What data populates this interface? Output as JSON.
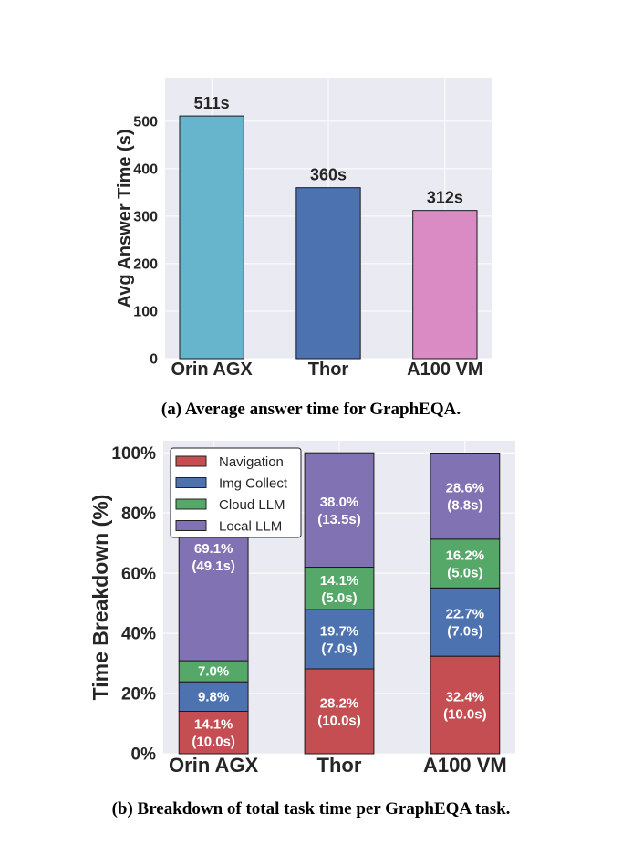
{
  "chart_data": [
    {
      "type": "bar",
      "categories": [
        "Orin AGX",
        "Thor",
        "A100 VM"
      ],
      "values": [
        511,
        360,
        312
      ],
      "data_labels": [
        "511s",
        "360s",
        "312s"
      ],
      "colors": [
        "#67b4cd",
        "#4c72b0",
        "#da8bc3"
      ],
      "xlabel": "",
      "ylabel": "Avg Answer Time (s)",
      "ylim": [
        0,
        590
      ],
      "yticks": [
        0,
        100,
        200,
        300,
        400,
        500
      ],
      "ytick_labels": [
        "0",
        "100",
        "200",
        "300",
        "400",
        "500"
      ],
      "grid": true,
      "caption": "(a) Average answer time for GraphEQA."
    },
    {
      "type": "bar",
      "stacked": true,
      "categories": [
        "Orin AGX",
        "Thor",
        "A100 VM"
      ],
      "series": [
        {
          "name": "Navigation",
          "color": "#c44e52",
          "values": [
            14.1,
            28.2,
            32.4
          ],
          "labels": [
            "14.1%\n(10.0s)",
            "28.2%\n(10.0s)",
            "32.4%\n(10.0s)"
          ]
        },
        {
          "name": "Img Collect",
          "color": "#4c72b0",
          "values": [
            9.8,
            19.7,
            22.7
          ],
          "labels": [
            "9.8%",
            "19.7%\n(7.0s)",
            "22.7%\n(7.0s)"
          ]
        },
        {
          "name": "Cloud LLM",
          "color": "#55a868",
          "values": [
            7.0,
            14.1,
            16.2
          ],
          "labels": [
            "7.0%",
            "14.1%\n(5.0s)",
            "16.2%\n(5.0s)"
          ]
        },
        {
          "name": "Local LLM",
          "color": "#8172b3",
          "values": [
            69.1,
            38.0,
            28.6
          ],
          "labels": [
            "69.1%\n(49.1s)",
            "38.0%\n(13.5s)",
            "28.6%\n(8.8s)"
          ]
        }
      ],
      "xlabel": "",
      "ylabel": "Time Breakdown (%)",
      "ylim": [
        0,
        104
      ],
      "yticks": [
        0,
        20,
        40,
        60,
        80,
        100
      ],
      "ytick_labels": [
        "0%",
        "20%",
        "40%",
        "60%",
        "80%",
        "100%"
      ],
      "legend": "top-left",
      "grid": true,
      "caption": "(b) Breakdown of total task time per GraphEQA task."
    }
  ]
}
